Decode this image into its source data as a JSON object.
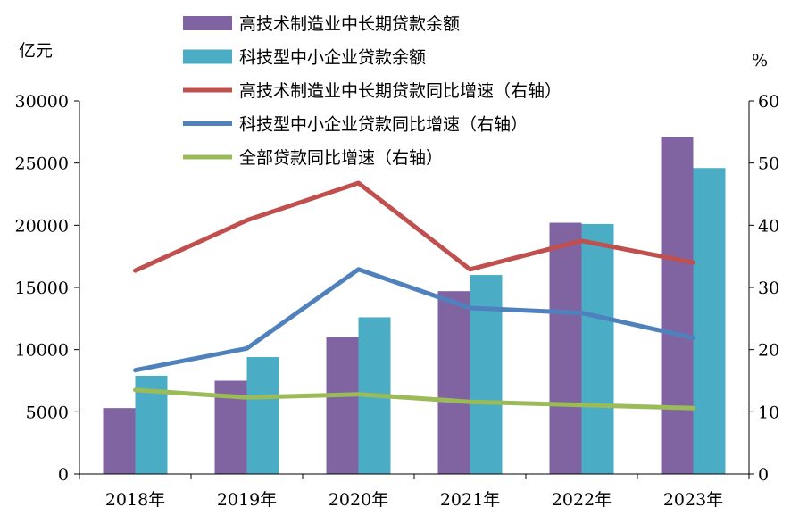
{
  "chart_data": {
    "type": "bar",
    "categories": [
      "2018年",
      "2019年",
      "2020年",
      "2021年",
      "2022年",
      "2023年"
    ],
    "left_axis": {
      "unit": "亿元",
      "ylim": [
        0,
        30000
      ],
      "ticks": [
        "0",
        "5000",
        "10000",
        "15000",
        "20000",
        "25000",
        "30000"
      ]
    },
    "right_axis": {
      "unit": "%",
      "ylim": [
        0,
        60
      ],
      "ticks": [
        "0",
        "10",
        "20",
        "30",
        "40",
        "50",
        "60"
      ]
    },
    "series": [
      {
        "name": "高技术制造业中长期贷款余额",
        "type": "bar",
        "axis": "left",
        "color": "#8064a2",
        "values": [
          5300,
          7500,
          11000,
          14700,
          20200,
          27100
        ]
      },
      {
        "name": "科技型中小企业贷款余额",
        "type": "bar",
        "axis": "left",
        "color": "#4bacc6",
        "values": [
          7900,
          9400,
          12600,
          16000,
          20100,
          24600
        ]
      },
      {
        "name": "高技术制造业中长期贷款同比增速（右轴）",
        "type": "line",
        "axis": "right",
        "color": "#c0504d",
        "values": [
          32.7,
          40.8,
          46.8,
          32.9,
          37.5,
          34.0
        ]
      },
      {
        "name": "科技型中小企业贷款同比增速（右轴）",
        "type": "line",
        "axis": "right",
        "color": "#4f81bd",
        "values": [
          16.7,
          20.2,
          32.9,
          26.7,
          25.9,
          21.9
        ]
      },
      {
        "name": "全部贷款同比增速（右轴）",
        "type": "line",
        "axis": "right",
        "color": "#9bbb59",
        "values": [
          13.5,
          12.3,
          12.8,
          11.6,
          11.1,
          10.6
        ]
      }
    ],
    "legend_position": "top",
    "grid": false
  }
}
